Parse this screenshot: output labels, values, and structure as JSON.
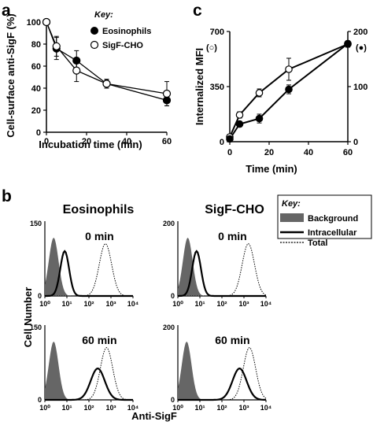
{
  "chart_data": [
    {
      "panel": "a",
      "type": "line",
      "xlabel": "Incubation time (min)",
      "ylabel": "Cell-surface anti-SigF (%)",
      "xlim": [
        0,
        60
      ],
      "ylim": [
        0,
        100
      ],
      "xticks": [
        0,
        20,
        40,
        60
      ],
      "yticks": [
        0,
        20,
        40,
        60,
        80,
        100
      ],
      "legend": {
        "title": "Key:",
        "position": "top-right"
      },
      "series": [
        {
          "name": "Eosinophils",
          "marker": "filled",
          "x": [
            0,
            5,
            15,
            30,
            60
          ],
          "y": [
            100,
            76,
            65,
            44,
            29
          ],
          "err": [
            0,
            10,
            9,
            4,
            5
          ]
        },
        {
          "name": "SigF-CHO",
          "marker": "open",
          "x": [
            0,
            5,
            15,
            30,
            60
          ],
          "y": [
            100,
            78,
            56,
            44,
            35
          ],
          "err": [
            0,
            9,
            10,
            4,
            11
          ]
        }
      ]
    },
    {
      "panel": "c",
      "type": "line",
      "xlabel": "Time (min)",
      "ylabel": "Internalized MFI",
      "ylabel_left_marker": "(○)",
      "ylabel_right_marker": "(●)",
      "xlim": [
        0,
        60
      ],
      "ylim_left": [
        0,
        700
      ],
      "ylim_right": [
        0,
        200
      ],
      "xticks": [
        0,
        20,
        40,
        60
      ],
      "yticks_left": [
        0,
        350,
        700
      ],
      "yticks_right": [
        0,
        100,
        200
      ],
      "series": [
        {
          "axis": "left",
          "marker": "open",
          "x": [
            0,
            5,
            15,
            30,
            60
          ],
          "y": [
            30,
            170,
            310,
            460,
            620
          ],
          "err": [
            0,
            20,
            25,
            70,
            20
          ]
        },
        {
          "axis": "right",
          "marker": "filled",
          "x": [
            0,
            5,
            15,
            30,
            60
          ],
          "y": [
            5,
            32,
            42,
            95,
            178
          ],
          "err": [
            0,
            5,
            8,
            8,
            5
          ]
        }
      ]
    },
    {
      "panel": "b",
      "type": "area",
      "xlabel": "Anti-SigF",
      "ylabel": "Cell Number",
      "xscale": "log",
      "xlim": [
        0,
        10000
      ],
      "legend": {
        "title": "Key:",
        "position": "top-right",
        "items": [
          "Background",
          "Intracellular",
          "Total"
        ]
      },
      "columns": [
        "Eosinophils",
        "SigF-CHO"
      ],
      "rows": [
        "0 min",
        "60 min"
      ],
      "y_tick_labels": {
        "Eosinophils": [
          "0",
          "150"
        ],
        "SigF-CHO": [
          "0",
          "200"
        ]
      },
      "x_tick_labels": [
        "10⁰",
        "10¹",
        "10²",
        "10³",
        "10⁴"
      ],
      "histograms": [
        {
          "column": "Eosinophils",
          "row": "0 min",
          "background_peak_log10": 0.4,
          "intracellular_peak_log10": 0.9,
          "total_peak_log10": 2.75
        },
        {
          "column": "SigF-CHO",
          "row": "0 min",
          "background_peak_log10": 0.45,
          "intracellular_peak_log10": 0.85,
          "total_peak_log10": 3.2
        },
        {
          "column": "Eosinophils",
          "row": "60 min",
          "background_peak_log10": 0.4,
          "intracellular_peak_log10": 2.4,
          "total_peak_log10": 2.8
        },
        {
          "column": "SigF-CHO",
          "row": "60 min",
          "background_peak_log10": 0.4,
          "intracellular_peak_log10": 2.8,
          "total_peak_log10": 3.25
        }
      ]
    }
  ],
  "panel_labels": {
    "a": "a",
    "b": "b",
    "c": "c"
  }
}
